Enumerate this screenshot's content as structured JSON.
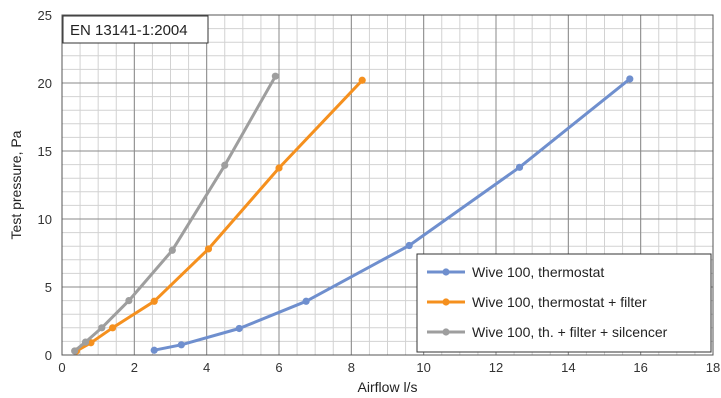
{
  "chart_data": {
    "type": "line",
    "title": "",
    "annotation": "EN 13141-1:2004",
    "xlabel": "Airflow l/s",
    "ylabel": "Test pressure, Pa",
    "xlim": [
      0,
      18
    ],
    "ylim": [
      0,
      25
    ],
    "x_major_ticks": [
      0,
      2,
      4,
      6,
      8,
      10,
      12,
      14,
      16,
      18
    ],
    "y_major_ticks": [
      0,
      5,
      10,
      15,
      20,
      25
    ],
    "x_minor_step": 0.5,
    "y_minor_step": 1,
    "grid": true,
    "legend_position": "bottom-right",
    "series": [
      {
        "name": "Wive 100, thermostat",
        "color": "#6f8fce",
        "points": [
          [
            2.55,
            0.35
          ],
          [
            3.3,
            0.75
          ],
          [
            4.9,
            1.95
          ],
          [
            6.75,
            3.95
          ],
          [
            9.6,
            8.05
          ],
          [
            12.65,
            13.8
          ],
          [
            15.7,
            20.3
          ]
        ]
      },
      {
        "name": "Wive 100, thermostat + filter",
        "color": "#f5901e",
        "points": [
          [
            0.4,
            0.3
          ],
          [
            0.8,
            0.9
          ],
          [
            1.4,
            2.0
          ],
          [
            2.55,
            3.95
          ],
          [
            4.05,
            7.8
          ],
          [
            6.0,
            13.75
          ],
          [
            8.3,
            20.2
          ]
        ]
      },
      {
        "name": "Wive 100, th. + filter + silcencer",
        "color": "#9e9e9e",
        "points": [
          [
            0.35,
            0.3
          ],
          [
            0.65,
            0.95
          ],
          [
            1.1,
            2.0
          ],
          [
            1.85,
            4.0
          ],
          [
            3.05,
            7.7
          ],
          [
            4.5,
            13.95
          ],
          [
            5.9,
            20.5
          ]
        ]
      }
    ]
  }
}
